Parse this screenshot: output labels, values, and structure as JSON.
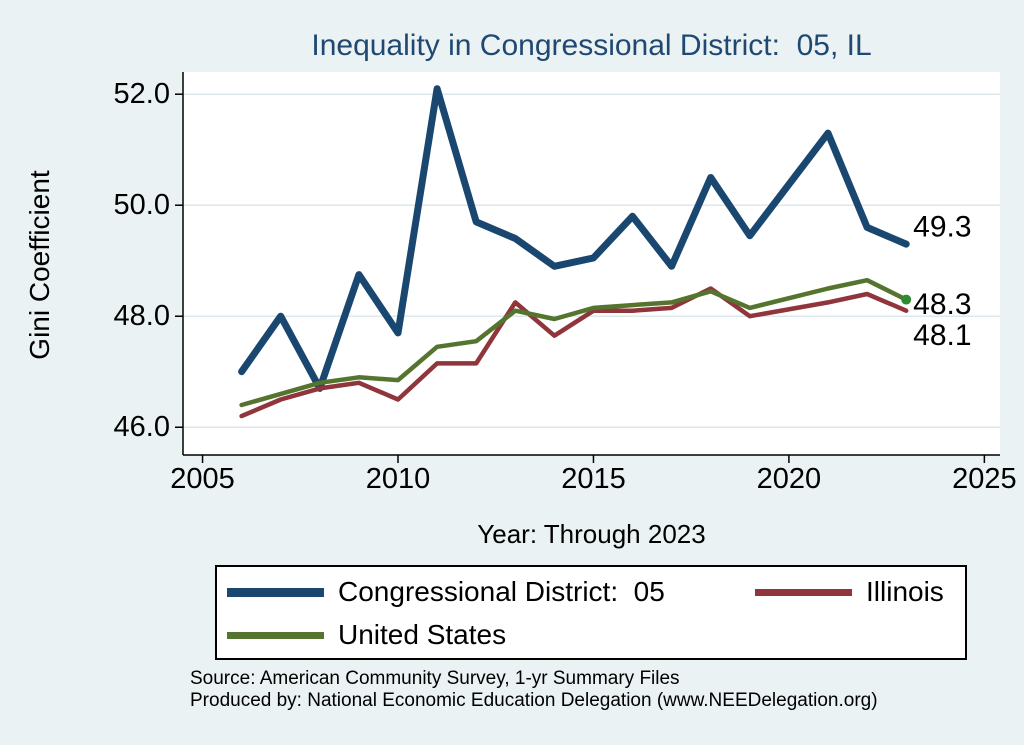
{
  "figure": {
    "source_line1": "Source: American Community Survey, 1-yr Summary Files",
    "source_line2": "Produced by: National Economic Education Delegation (www.NEEDelegation.org)"
  },
  "chart_data": {
    "type": "line",
    "title": "Inequality in Congressional District:  05, IL",
    "xlabel": "Year: Through 2023",
    "ylabel": "Gini Coefficient",
    "x": [
      2006,
      2007,
      2008,
      2009,
      2010,
      2011,
      2012,
      2013,
      2014,
      2015,
      2016,
      2017,
      2018,
      2019,
      2020,
      2021,
      2022,
      2023
    ],
    "series": [
      {
        "name": "Congressional District:  05",
        "color": "#1a476f",
        "line_width": 7,
        "end_label": "49.3",
        "end_marker": false,
        "values": [
          47.0,
          48.0,
          46.7,
          48.75,
          47.7,
          52.1,
          49.7,
          49.4,
          48.9,
          49.05,
          49.8,
          48.9,
          50.5,
          49.45,
          null,
          51.3,
          49.6,
          49.3
        ]
      },
      {
        "name": "Illinois",
        "color": "#90353b",
        "line_width": 4.5,
        "end_label": "48.1",
        "end_marker": false,
        "values": [
          46.2,
          46.5,
          46.7,
          46.8,
          46.5,
          47.15,
          47.15,
          48.25,
          47.65,
          48.1,
          48.1,
          48.15,
          48.5,
          48.0,
          null,
          48.25,
          48.4,
          48.1
        ]
      },
      {
        "name": "United States",
        "color": "#55752f",
        "line_width": 4.5,
        "end_label": "48.3",
        "end_marker": true,
        "values": [
          46.4,
          46.6,
          46.8,
          46.9,
          46.85,
          47.45,
          47.55,
          48.1,
          47.95,
          48.15,
          48.2,
          48.25,
          48.45,
          48.15,
          null,
          48.5,
          48.65,
          48.3
        ]
      }
    ],
    "x_ticks": {
      "values": [
        2005,
        2010,
        2015,
        2020,
        2025
      ],
      "labels": [
        "2005",
        "2010",
        "2015",
        "2020",
        "2025"
      ]
    },
    "y_ticks": {
      "values": [
        46,
        48,
        50,
        52
      ],
      "labels": [
        "46.0",
        "48.0",
        "50.0",
        "52.0"
      ]
    },
    "xlim": [
      2004.5,
      2025.4
    ],
    "ylim": [
      45.5,
      52.4
    ],
    "grid": "horizontal",
    "legend_position": "bottom",
    "missing_data_years": [
      2020
    ]
  },
  "legend": {
    "items": [
      {
        "label": "Congressional District:  05",
        "color": "#1a476f",
        "thickness": "thick"
      },
      {
        "label": "Illinois",
        "color": "#90353b",
        "thickness": "thin"
      },
      {
        "label": "United States",
        "color": "#55752f",
        "thickness": "thin"
      }
    ]
  },
  "colors": {
    "background": "#eaf2f3",
    "plot_background": "#ffffff",
    "gridline": "#dde8ec",
    "axis": "#000000",
    "title": "#1f4872",
    "end_marker_dot": "#2f8b2f",
    "text": "#000000"
  }
}
